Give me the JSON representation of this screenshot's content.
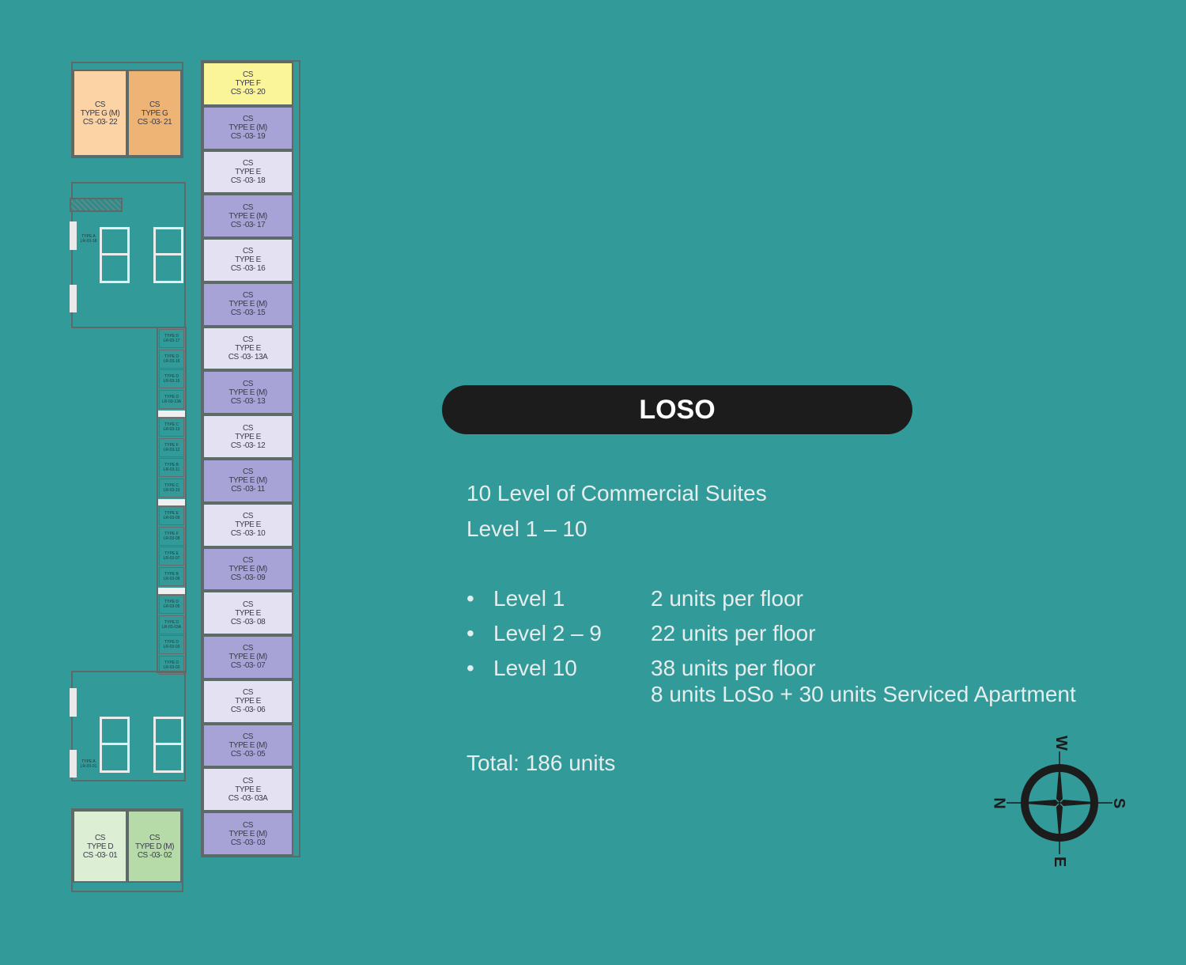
{
  "title": "LOSO",
  "description": {
    "line1": "10 Level of Commercial Suites",
    "line2": "Level 1 – 10"
  },
  "levels": [
    {
      "level": "Level 1",
      "units": "2 units per floor"
    },
    {
      "level": "Level 2 – 9",
      "units": "22 units per floor"
    },
    {
      "level": "Level 10",
      "units": "38 units per floor",
      "note": "8 units LoSo + 30 units Serviced Apartment"
    }
  ],
  "total": "Total: 186 units",
  "compass": {
    "top": "W",
    "right": "S",
    "bottom": "E",
    "left": "N"
  },
  "colors": {
    "background": "#339a9a",
    "type_e": "#e4e2f2",
    "type_e_m": "#a7a3d6",
    "type_f": "#fbf59a",
    "type_g": "#f8c98f",
    "type_g_m": "#fad4a6",
    "type_d": "#dcefd5",
    "type_d_m": "#b9dfae"
  },
  "floorplan": {
    "top_units": [
      {
        "line1": "CS",
        "line2": "TYPE G (M)",
        "line3": "CS -03- 22",
        "color": "#fbd3a4"
      },
      {
        "line1": "CS",
        "line2": "TYPE G",
        "line3": "CS -03- 21",
        "color": "#eeb476"
      }
    ],
    "bottom_units": [
      {
        "line1": "CS",
        "line2": "TYPE D",
        "line3": "CS -03- 01",
        "color": "#dcefd5"
      },
      {
        "line1": "CS",
        "line2": "TYPE D (M)",
        "line3": "CS -03- 02",
        "color": "#b6dba9"
      }
    ],
    "column_units": [
      {
        "line1": "CS",
        "line2": "TYPE F",
        "line3": "CS -03- 20",
        "color": "#fbf59a"
      },
      {
        "line1": "CS",
        "line2": "TYPE E (M)",
        "line3": "CS -03- 19",
        "color": "#a7a3d6"
      },
      {
        "line1": "CS",
        "line2": "TYPE E",
        "line3": "CS -03- 18",
        "color": "#e4e2f2"
      },
      {
        "line1": "CS",
        "line2": "TYPE E (M)",
        "line3": "CS -03- 17",
        "color": "#a7a3d6"
      },
      {
        "line1": "CS",
        "line2": "TYPE E",
        "line3": "CS -03- 16",
        "color": "#e4e2f2"
      },
      {
        "line1": "CS",
        "line2": "TYPE E (M)",
        "line3": "CS -03- 15",
        "color": "#a7a3d6"
      },
      {
        "line1": "CS",
        "line2": "TYPE E",
        "line3": "CS -03- 13A",
        "color": "#e4e2f2"
      },
      {
        "line1": "CS",
        "line2": "TYPE E (M)",
        "line3": "CS -03- 13",
        "color": "#a7a3d6"
      },
      {
        "line1": "CS",
        "line2": "TYPE E",
        "line3": "CS -03- 12",
        "color": "#e4e2f2"
      },
      {
        "line1": "CS",
        "line2": "TYPE E (M)",
        "line3": "CS -03- 11",
        "color": "#a7a3d6"
      },
      {
        "line1": "CS",
        "line2": "TYPE E",
        "line3": "CS -03- 10",
        "color": "#e4e2f2"
      },
      {
        "line1": "CS",
        "line2": "TYPE E (M)",
        "line3": "CS -03- 09",
        "color": "#a7a3d6"
      },
      {
        "line1": "CS",
        "line2": "TYPE E",
        "line3": "CS -03- 08",
        "color": "#e4e2f2"
      },
      {
        "line1": "CS",
        "line2": "TYPE E (M)",
        "line3": "CS -03- 07",
        "color": "#a7a3d6"
      },
      {
        "line1": "CS",
        "line2": "TYPE E",
        "line3": "CS -03- 06",
        "color": "#e4e2f2"
      },
      {
        "line1": "CS",
        "line2": "TYPE E (M)",
        "line3": "CS -03- 05",
        "color": "#a7a3d6"
      },
      {
        "line1": "CS",
        "line2": "TYPE E",
        "line3": "CS -03- 03A",
        "color": "#e4e2f2"
      },
      {
        "line1": "CS",
        "line2": "TYPE E (M)",
        "line3": "CS -03- 03",
        "color": "#a7a3d6"
      }
    ],
    "small_units": [
      {
        "type": "TYPE D",
        "id": "LR-03-17"
      },
      {
        "type": "TYPE D",
        "id": "LR-03-16"
      },
      {
        "type": "TYPE D",
        "id": "LR-03-15"
      },
      {
        "type": "TYPE D",
        "id": "LR-03-13A"
      },
      {
        "gap": true
      },
      {
        "type": "TYPE C",
        "id": "LR-03-13"
      },
      {
        "type": "TYPE F",
        "id": "LR-03-12"
      },
      {
        "type": "TYPE B",
        "id": "LR-03-11"
      },
      {
        "type": "TYPE C",
        "id": "LR-03-10"
      },
      {
        "gap": true
      },
      {
        "type": "TYPE E",
        "id": "LR-03-09"
      },
      {
        "type": "TYPE F",
        "id": "LR-03-08"
      },
      {
        "type": "TYPE E",
        "id": "LR-03-07"
      },
      {
        "type": "TYPE B",
        "id": "LR-03-06"
      },
      {
        "gap": true
      },
      {
        "type": "TYPE D",
        "id": "LR-03-05"
      },
      {
        "type": "TYPE D",
        "id": "LR-03-03A"
      },
      {
        "type": "TYPE D",
        "id": "LR-03-03"
      },
      {
        "type": "TYPE D",
        "id": "LR-03-02"
      }
    ],
    "core_units": [
      {
        "type": "TYPE A",
        "id": "LR-03-18"
      },
      {
        "type": "TYPE A",
        "id": "LR-03-01"
      }
    ]
  }
}
